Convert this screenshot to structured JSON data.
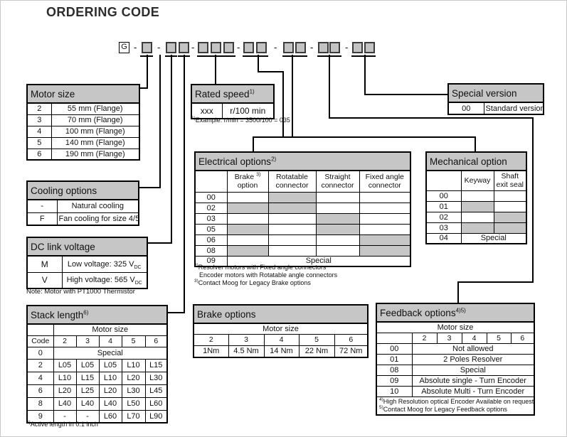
{
  "page": {
    "title": "ORDERING CODE"
  },
  "code": {
    "prefix": "G",
    "separator": "-"
  },
  "motor_size": {
    "title": "Motor size",
    "rows": [
      [
        "2",
        "55 mm (Flange)"
      ],
      [
        "3",
        "70 mm (Flange)"
      ],
      [
        "4",
        "100 mm (Flange)"
      ],
      [
        "5",
        "140 mm (Flange)"
      ],
      [
        "6",
        "190 mm (Flange)"
      ]
    ]
  },
  "rated_speed": {
    "title": "Rated speed",
    "title_sup": "1)",
    "code": "xxx",
    "unit": "r/100 min",
    "footnote_sup": "1)",
    "footnote": "Example: r/min = 3500/100 = 035"
  },
  "special_version": {
    "title": "Special version",
    "code": "00",
    "desc": "Standard version"
  },
  "cooling": {
    "title": "Cooling options",
    "rows": [
      [
        "-",
        "Natural cooling"
      ],
      [
        "F",
        "Fan cooling for size 4/5/6"
      ]
    ]
  },
  "dc_link": {
    "title": "DC link voltage",
    "rows": [
      {
        "code": "M",
        "desc": "Low voltage: 325 V",
        "sub": "DC"
      },
      {
        "code": "V",
        "desc": "High voltage: 565 V",
        "sub": "DC"
      }
    ],
    "note": "Note: Motor with PT1000 Thermistor"
  },
  "electrical": {
    "title": "Electrical options",
    "title_sup": "2)",
    "col1": {
      "label": "Brake",
      "sup": "3)",
      "label2": "option"
    },
    "cols": [
      "Rotatable connector",
      "Straight connector",
      "Fixed angle connector"
    ],
    "rows": [
      {
        "code": "00",
        "shaded": [
          false,
          true,
          false,
          false
        ]
      },
      {
        "code": "02",
        "shaded": [
          true,
          true,
          false,
          false
        ]
      },
      {
        "code": "03",
        "shaded": [
          false,
          false,
          true,
          false
        ]
      },
      {
        "code": "05",
        "shaded": [
          true,
          false,
          true,
          false
        ]
      },
      {
        "code": "06",
        "shaded": [
          false,
          false,
          false,
          true
        ]
      },
      {
        "code": "08",
        "shaded": [
          true,
          false,
          false,
          true
        ]
      }
    ],
    "special_row": {
      "code": "09",
      "label": "Special"
    },
    "footnotes": [
      {
        "sup": "2)",
        "text": "Resolver motors with Fixed angle connectors"
      },
      {
        "sup": "",
        "text": "Encoder motors with Rotatable angle connectors"
      },
      {
        "sup": "3)",
        "text": "Contact Moog for Legacy Brake options"
      }
    ]
  },
  "mechanical": {
    "title": "Mechanical option",
    "cols": [
      "Keyway",
      "Shaft exit seal"
    ],
    "rows": [
      {
        "code": "00",
        "shaded": [
          false,
          false
        ]
      },
      {
        "code": "01",
        "shaded": [
          true,
          false
        ]
      },
      {
        "code": "02",
        "shaded": [
          false,
          true
        ]
      },
      {
        "code": "03",
        "shaded": [
          true,
          true
        ]
      }
    ],
    "special_row": {
      "code": "04",
      "label": "Special"
    }
  },
  "stack_length": {
    "title": "Stack length",
    "title_sup": "6)",
    "group_header": "Motor size",
    "col_header": [
      "Code",
      "2",
      "3",
      "4",
      "5",
      "6"
    ],
    "special_row": {
      "code": "0",
      "label": "Special"
    },
    "rows": [
      [
        "2",
        "L05",
        "L05",
        "L05",
        "L10",
        "L15"
      ],
      [
        "4",
        "L10",
        "L15",
        "L10",
        "L20",
        "L30"
      ],
      [
        "6",
        "L20",
        "L25",
        "L20",
        "L30",
        "L45"
      ],
      [
        "8",
        "L40",
        "L40",
        "L40",
        "L50",
        "L60"
      ],
      [
        "9",
        "-",
        "-",
        "L60",
        "L70",
        "L90"
      ]
    ],
    "footnote_sup": "6)",
    "footnote": "Active length in 0.1 inch"
  },
  "brake": {
    "title": "Brake options",
    "group_header": "Motor size",
    "sizes": [
      "2",
      "3",
      "4",
      "5",
      "6"
    ],
    "values": [
      "1Nm",
      "4.5 Nm",
      "14 Nm",
      "22 Nm",
      "72 Nm"
    ]
  },
  "feedback": {
    "title": "Feedback options",
    "title_sup": "4)5)",
    "group_header": "Motor size",
    "sizes": [
      "2",
      "3",
      "4",
      "5",
      "6"
    ],
    "rows": [
      [
        "00",
        "Not allowed"
      ],
      [
        "01",
        "2 Poles Resolver"
      ],
      [
        "08",
        "Special"
      ],
      [
        "09",
        "Absolute single - Turn Encoder"
      ],
      [
        "10",
        "Absolute Multi - Turn Encoder"
      ]
    ],
    "footnotes": [
      {
        "sup": "4)",
        "text": "High Resolution optical Encoder Available on request"
      },
      {
        "sup": "5)",
        "text": "Contact Moog for Legacy Feedback options"
      }
    ]
  },
  "colors": {
    "header_gray": "#c6c6c6",
    "shaded_cell": "#c6c6c6",
    "line": "#000000"
  }
}
